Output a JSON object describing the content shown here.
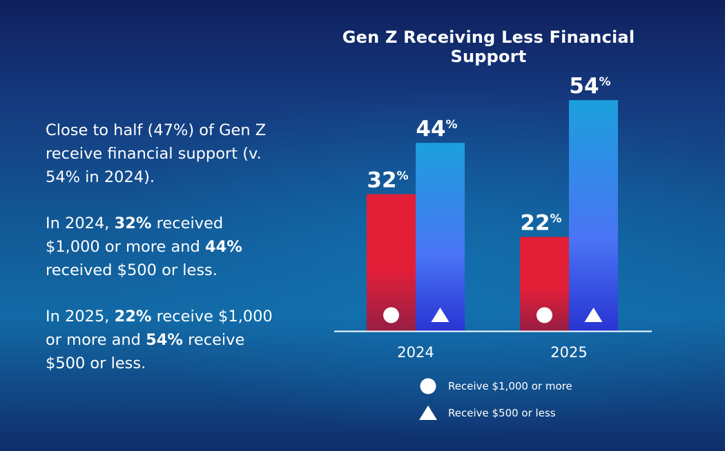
{
  "summary": {
    "p1": "Close to half (47%) of Gen Z receive financial support (v. 54% in 2024).",
    "p2_pre": "In 2024, ",
    "p2_v1": "32%",
    "p2_mid": " received $1,000 or more and ",
    "p2_v2": "44%",
    "p2_post": " received $500 or less.",
    "p3_pre": "In 2025, ",
    "p3_v1": "22%",
    "p3_mid": " receive $1,000 or more and ",
    "p3_v2": "54%",
    "p3_post": " receive $500 or less."
  },
  "colors": {
    "red_top": "#e31f38",
    "red_bottom": "#961e45",
    "blue_top": "#1ba0dc",
    "blue_mid": "#4a74f5",
    "blue_bottom": "#2834d2",
    "axis": "#ffffff"
  },
  "chart_data": {
    "type": "bar",
    "title": "Gen Z Receiving Less Financial Support",
    "categories": [
      "2024",
      "2025"
    ],
    "ylim": [
      0,
      60
    ],
    "grid": false,
    "legend_placement": "bottom-center",
    "series": [
      {
        "name": "Receive $1,000 or more",
        "marker": "circle",
        "values": [
          32,
          22
        ],
        "labels": [
          "32",
          "22"
        ]
      },
      {
        "name": "Receive $500 or less",
        "marker": "triangle",
        "values": [
          44,
          54
        ],
        "labels": [
          "44",
          "54"
        ]
      }
    ],
    "unit": "%"
  }
}
